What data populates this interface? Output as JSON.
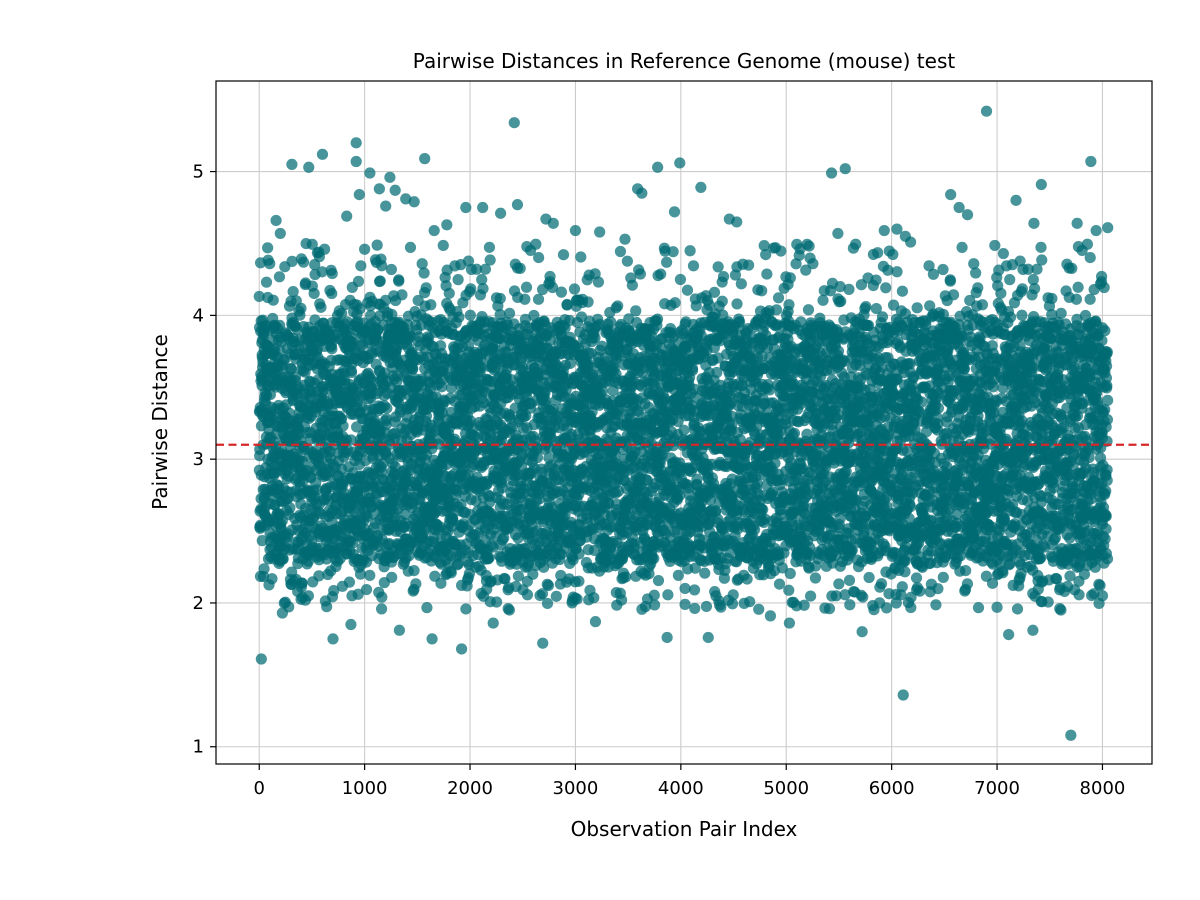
{
  "chart_data": {
    "type": "scatter",
    "title": "Pairwise Distances in Reference Genome (mouse) test",
    "xlabel": "Observation Pair Index",
    "ylabel": "Pairwise Distance",
    "xlim": [
      -410,
      8470
    ],
    "ylim": [
      0.88,
      5.63
    ],
    "xticks": [
      0,
      1000,
      2000,
      3000,
      4000,
      5000,
      6000,
      7000,
      8000
    ],
    "yticks": [
      1,
      2,
      3,
      4,
      5
    ],
    "grid": true,
    "n_points": 8050,
    "marker_color": "#006b73",
    "marker_alpha": 0.72,
    "reference_line": {
      "y": 3.1,
      "color": "#d62728",
      "style": "dashed"
    },
    "core_band": {
      "y_low": 2.3,
      "y_high": 3.95,
      "center": 3.1
    },
    "outliers": [
      {
        "x": 20,
        "y": 1.61
      },
      {
        "x": 80,
        "y": 4.47
      },
      {
        "x": 100,
        "y": 4.36
      },
      {
        "x": 160,
        "y": 4.66
      },
      {
        "x": 200,
        "y": 4.57
      },
      {
        "x": 220,
        "y": 1.93
      },
      {
        "x": 310,
        "y": 5.05
      },
      {
        "x": 420,
        "y": 4.37
      },
      {
        "x": 470,
        "y": 5.03
      },
      {
        "x": 600,
        "y": 5.12
      },
      {
        "x": 620,
        "y": 4.46
      },
      {
        "x": 700,
        "y": 1.75
      },
      {
        "x": 830,
        "y": 4.69
      },
      {
        "x": 870,
        "y": 1.85
      },
      {
        "x": 920,
        "y": 5.2
      },
      {
        "x": 920,
        "y": 5.07
      },
      {
        "x": 950,
        "y": 4.84
      },
      {
        "x": 1000,
        "y": 4.46
      },
      {
        "x": 1050,
        "y": 4.99
      },
      {
        "x": 1140,
        "y": 4.88
      },
      {
        "x": 1200,
        "y": 4.76
      },
      {
        "x": 1240,
        "y": 4.96
      },
      {
        "x": 1290,
        "y": 4.87
      },
      {
        "x": 1330,
        "y": 1.81
      },
      {
        "x": 1390,
        "y": 4.81
      },
      {
        "x": 1470,
        "y": 4.79
      },
      {
        "x": 1570,
        "y": 5.09
      },
      {
        "x": 1640,
        "y": 1.75
      },
      {
        "x": 1660,
        "y": 4.59
      },
      {
        "x": 1780,
        "y": 4.63
      },
      {
        "x": 1920,
        "y": 1.68
      },
      {
        "x": 1960,
        "y": 4.75
      },
      {
        "x": 2120,
        "y": 4.75
      },
      {
        "x": 2220,
        "y": 1.86
      },
      {
        "x": 2290,
        "y": 4.71
      },
      {
        "x": 2420,
        "y": 5.34
      },
      {
        "x": 2450,
        "y": 4.77
      },
      {
        "x": 2690,
        "y": 1.72
      },
      {
        "x": 2720,
        "y": 4.67
      },
      {
        "x": 2790,
        "y": 4.64
      },
      {
        "x": 3000,
        "y": 4.59
      },
      {
        "x": 3190,
        "y": 1.87
      },
      {
        "x": 3230,
        "y": 4.58
      },
      {
        "x": 3470,
        "y": 4.53
      },
      {
        "x": 3590,
        "y": 4.88
      },
      {
        "x": 3630,
        "y": 4.85
      },
      {
        "x": 3780,
        "y": 5.03
      },
      {
        "x": 3870,
        "y": 1.76
      },
      {
        "x": 3940,
        "y": 4.72
      },
      {
        "x": 3990,
        "y": 5.06
      },
      {
        "x": 4040,
        "y": 1.99
      },
      {
        "x": 4190,
        "y": 4.89
      },
      {
        "x": 4260,
        "y": 1.76
      },
      {
        "x": 4460,
        "y": 4.67
      },
      {
        "x": 4530,
        "y": 4.65
      },
      {
        "x": 4850,
        "y": 1.91
      },
      {
        "x": 5030,
        "y": 1.86
      },
      {
        "x": 5410,
        "y": 1.96
      },
      {
        "x": 5430,
        "y": 4.99
      },
      {
        "x": 5490,
        "y": 4.57
      },
      {
        "x": 5560,
        "y": 5.02
      },
      {
        "x": 5720,
        "y": 1.8
      },
      {
        "x": 5930,
        "y": 4.59
      },
      {
        "x": 6050,
        "y": 4.6
      },
      {
        "x": 6110,
        "y": 1.36
      },
      {
        "x": 6130,
        "y": 4.55
      },
      {
        "x": 6180,
        "y": 4.51
      },
      {
        "x": 6560,
        "y": 4.84
      },
      {
        "x": 6640,
        "y": 4.75
      },
      {
        "x": 6720,
        "y": 4.7
      },
      {
        "x": 6900,
        "y": 5.42
      },
      {
        "x": 7000,
        "y": 1.97
      },
      {
        "x": 7060,
        "y": 4.43
      },
      {
        "x": 7110,
        "y": 1.78
      },
      {
        "x": 7180,
        "y": 4.8
      },
      {
        "x": 7340,
        "y": 1.81
      },
      {
        "x": 7350,
        "y": 4.64
      },
      {
        "x": 7420,
        "y": 4.91
      },
      {
        "x": 7420,
        "y": 2.01
      },
      {
        "x": 7640,
        "y": 2.08
      },
      {
        "x": 7700,
        "y": 1.08
      },
      {
        "x": 7760,
        "y": 4.64
      },
      {
        "x": 7890,
        "y": 5.07
      },
      {
        "x": 7940,
        "y": 4.59
      },
      {
        "x": 8000,
        "y": 2.05
      },
      {
        "x": 8050,
        "y": 4.61
      }
    ]
  }
}
